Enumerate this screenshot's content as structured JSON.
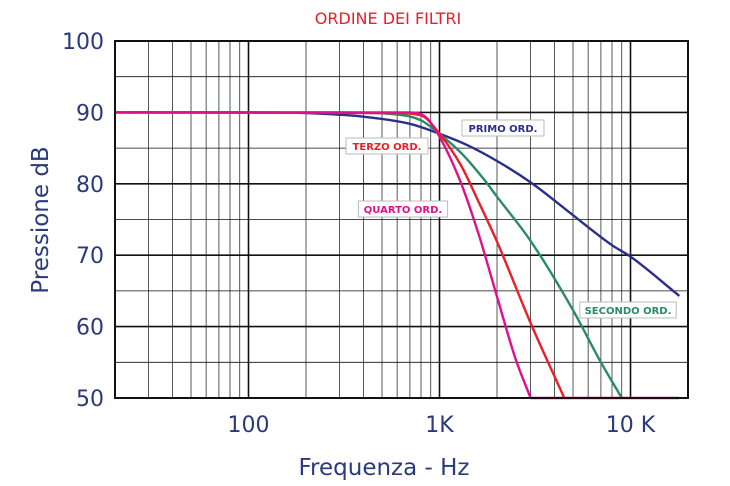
{
  "chart_data": {
    "type": "line",
    "title": "ORDINE DEI FILTRI",
    "xlabel": "Frequenza - Hz",
    "ylabel": "Pressione  dB",
    "x_scale": "log",
    "xlim": [
      20,
      20000
    ],
    "ylim": [
      50,
      100
    ],
    "grid": true,
    "x_ticks": [
      {
        "value": 100,
        "label": "100"
      },
      {
        "value": 1000,
        "label": "1K"
      },
      {
        "value": 10000,
        "label": "10 K"
      }
    ],
    "y_ticks": [
      {
        "value": 100,
        "label": "100"
      },
      {
        "value": 90,
        "label": "90"
      },
      {
        "value": 80,
        "label": "80"
      },
      {
        "value": 70,
        "label": "70"
      },
      {
        "value": 60,
        "label": "60"
      },
      {
        "value": 50,
        "label": "50"
      }
    ],
    "series": [
      {
        "name": "PRIMO ORD.",
        "color": "#2a2f8a",
        "x": [
          20,
          100,
          200,
          400,
          700,
          1000,
          1400,
          2000,
          3000,
          5000,
          8000,
          10000,
          18000
        ],
        "y": [
          90,
          90,
          89.9,
          89.4,
          88.4,
          87,
          85.4,
          83.2,
          80.2,
          75.6,
          71.4,
          69.8,
          64.3
        ]
      },
      {
        "name": "SECONDO ORD.",
        "color": "#2a8a6a",
        "x": [
          20,
          300,
          600,
          800,
          1000,
          1300,
          1700,
          2000,
          3000,
          5000,
          7000,
          9000
        ],
        "y": [
          90,
          90,
          89.7,
          88.9,
          87,
          84.3,
          80.7,
          78.2,
          72,
          62.3,
          55,
          50
        ]
      },
      {
        "name": "TERZO ORD.",
        "color": "#e8202a",
        "x": [
          20,
          600,
          800,
          1000,
          1300,
          1600,
          2000,
          3000,
          4500
        ],
        "y": [
          90,
          89.9,
          89.6,
          87,
          82.5,
          77.5,
          71.9,
          60.5,
          50
        ]
      },
      {
        "name": "QUARTO ORD.",
        "color": "#e0108a",
        "x": [
          20,
          700,
          850,
          1000,
          1300,
          1600,
          2000,
          2500,
          3000
        ],
        "y": [
          90,
          90,
          89.3,
          86.6,
          80,
          73,
          64.2,
          55.5,
          50
        ]
      }
    ],
    "tail": {
      "color": "#e0108a",
      "x": [
        3000,
        18000
      ],
      "y": [
        50,
        50
      ]
    },
    "annotations": [
      {
        "text": "PRIMO ORD.",
        "series": 0
      },
      {
        "text": "TERZO ORD.",
        "series": 2
      },
      {
        "text": "QUARTO ORD.",
        "series": 3
      },
      {
        "text": "SECONDO ORD.",
        "series": 1
      }
    ]
  }
}
